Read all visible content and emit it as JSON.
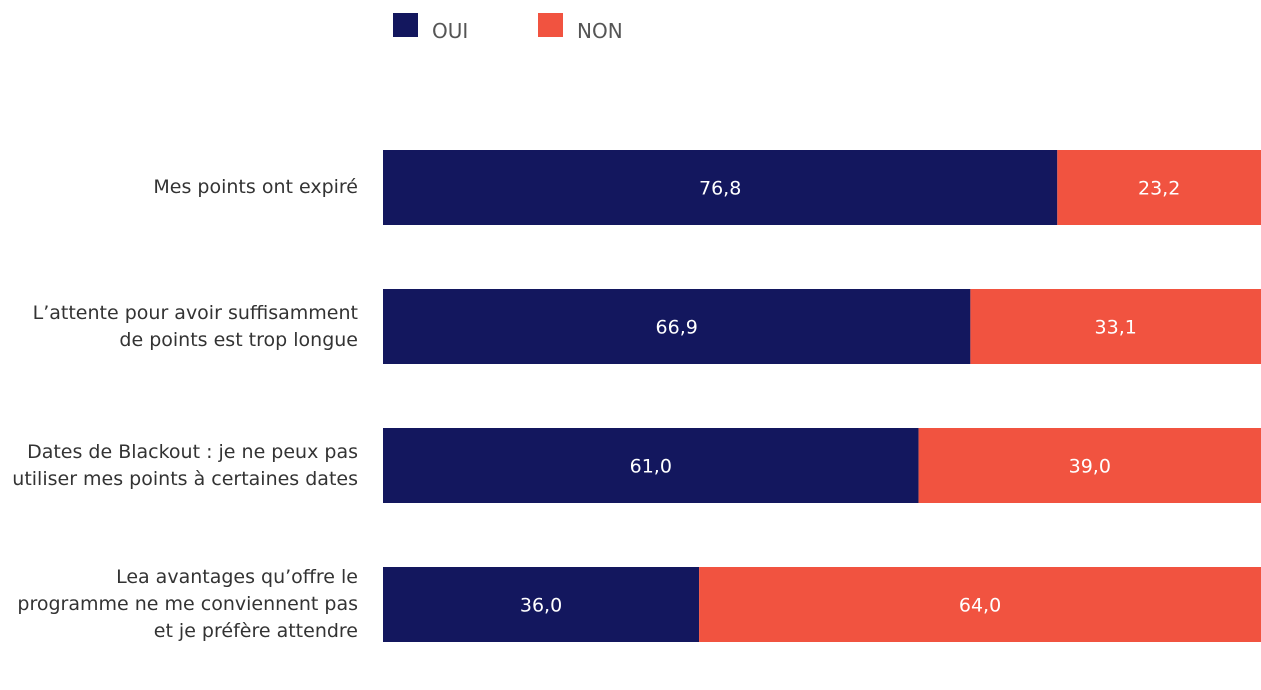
{
  "chart_data": {
    "type": "stacked-bar-horizontal",
    "categories": [
      "Mes points ont expiré",
      "L’attente pour avoir suffisamment de points est trop longue",
      "Dates de Blackout : je ne peux pas utiliser mes points à certaines dates",
      "Lea avantages qu’offre le programme ne me conviennent pas et je préfère attendre"
    ],
    "series": [
      {
        "name": "OUI",
        "color": "#13175e",
        "values": [
          76.8,
          66.9,
          61.0,
          36.0
        ],
        "value_labels": [
          "76,8",
          "66,9",
          "61,0",
          "36,0"
        ]
      },
      {
        "name": "NON",
        "color": "#f15340",
        "values": [
          23.2,
          33.1,
          39.0,
          64.0
        ],
        "value_labels": [
          "23,2",
          "33,1",
          "39,0",
          "64,0"
        ]
      }
    ],
    "xlim": [
      0,
      100
    ]
  }
}
